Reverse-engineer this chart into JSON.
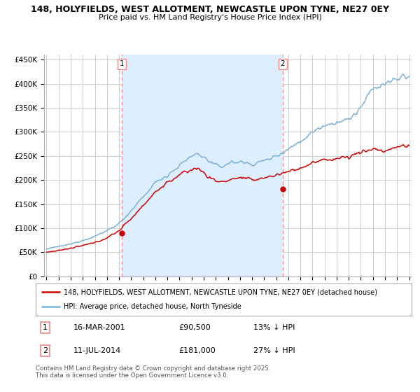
{
  "title_line1": "148, HOLYFIELDS, WEST ALLOTMENT, NEWCASTLE UPON TYNE, NE27 0EY",
  "title_line2": "Price paid vs. HM Land Registry's House Price Index (HPI)",
  "background_color": "#ffffff",
  "plot_bg_color": "#ffffff",
  "grid_color": "#cccccc",
  "price_paid_color": "#cc0000",
  "hpi_color": "#7ab0d4",
  "vline_color": "#ee8888",
  "vband_color": "#ddeeff",
  "ylim": [
    0,
    460000
  ],
  "yticks": [
    0,
    50000,
    100000,
    150000,
    200000,
    250000,
    300000,
    350000,
    400000,
    450000
  ],
  "ytick_labels": [
    "£0",
    "£50K",
    "£100K",
    "£150K",
    "£200K",
    "£250K",
    "£300K",
    "£350K",
    "£400K",
    "£450K"
  ],
  "xmin_year": 1995,
  "xmax_year": 2025,
  "xticks": [
    1995,
    1996,
    1997,
    1998,
    1999,
    2000,
    2001,
    2002,
    2003,
    2004,
    2005,
    2006,
    2007,
    2008,
    2009,
    2010,
    2011,
    2012,
    2013,
    2014,
    2015,
    2016,
    2017,
    2018,
    2019,
    2020,
    2021,
    2022,
    2023,
    2024,
    2025
  ],
  "sale1_x": 2001.21,
  "sale1_y": 90500,
  "sale1_label": "1",
  "sale1_date": "16-MAR-2001",
  "sale1_price": "£90,500",
  "sale1_hpi": "13% ↓ HPI",
  "sale2_x": 2014.53,
  "sale2_y": 181000,
  "sale2_label": "2",
  "sale2_date": "11-JUL-2014",
  "sale2_price": "£181,000",
  "sale2_hpi": "27% ↓ HPI",
  "legend_line1": "148, HOLYFIELDS, WEST ALLOTMENT, NEWCASTLE UPON TYNE, NE27 0EY (detached house)",
  "legend_line2": "HPI: Average price, detached house, North Tyneside",
  "footer": "Contains HM Land Registry data © Crown copyright and database right 2025.\nThis data is licensed under the Open Government Licence v3.0."
}
